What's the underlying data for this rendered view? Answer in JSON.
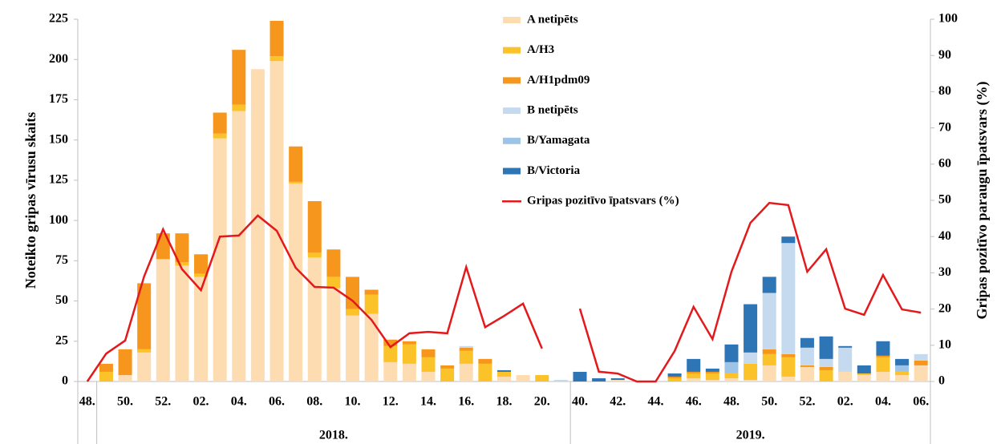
{
  "chart_data": {
    "type": "bar",
    "stacked": true,
    "categories": [
      "48.",
      null,
      "50.",
      null,
      "52.",
      null,
      "02.",
      null,
      "04.",
      null,
      "06.",
      null,
      "08.",
      null,
      "10.",
      null,
      "12.",
      null,
      "14.",
      null,
      "16.",
      null,
      "18.",
      null,
      "20.",
      null,
      "40.",
      null,
      "42.",
      null,
      "44.",
      null,
      "46.",
      null,
      "48.",
      null,
      "50.",
      null,
      "52.",
      null,
      "02.",
      null,
      "04.",
      null,
      "06."
    ],
    "x_group_labels": [
      "2018.",
      "2019."
    ],
    "ylabel": "Noteikto gripas vīrusu skaits",
    "y2label": "Gripas pozitīvo paraugu īpatsvars (%)",
    "ylim": [
      0,
      225
    ],
    "yticks": [
      0,
      25,
      50,
      75,
      100,
      125,
      150,
      175,
      200,
      225
    ],
    "y2lim": [
      0,
      100
    ],
    "y2ticks": [
      0,
      10,
      20,
      30,
      40,
      50,
      60,
      70,
      80,
      90,
      100
    ],
    "grid": false,
    "series": [
      {
        "name": "A netipēts",
        "color": "#fddcb2",
        "values": [
          0,
          0,
          4,
          18,
          76,
          72,
          65,
          151,
          168,
          194,
          199,
          123,
          77,
          58,
          41,
          42,
          12,
          11,
          6,
          0,
          11,
          0,
          3,
          4,
          0,
          0,
          0,
          0,
          1,
          0,
          0,
          0,
          2,
          1,
          2,
          1,
          10,
          3,
          9,
          0,
          6,
          4,
          6,
          4,
          10
        ]
      },
      {
        "name": "A/H3",
        "color": "#fcc22a",
        "values": [
          0,
          6,
          0,
          2,
          0,
          2,
          2,
          3,
          4,
          0,
          3,
          1,
          3,
          7,
          4,
          12,
          10,
          12,
          9,
          8,
          8,
          11,
          3,
          0,
          4,
          0,
          0,
          0,
          0,
          0,
          0,
          2,
          3,
          4,
          3,
          10,
          7,
          12,
          0,
          7,
          0,
          1,
          9,
          2,
          0
        ]
      },
      {
        "name": "A/H1pdm09",
        "color": "#f7961c",
        "values": [
          0,
          5,
          16,
          41,
          16,
          18,
          12,
          13,
          34,
          0,
          22,
          22,
          32,
          17,
          20,
          3,
          4,
          2,
          5,
          2,
          2,
          3,
          0,
          0,
          0,
          0,
          0,
          0,
          0,
          0,
          0,
          1,
          1,
          1,
          0,
          0,
          3,
          2,
          1,
          2,
          0,
          0,
          1,
          0,
          3
        ]
      },
      {
        "name": "B netipēts",
        "color": "#c6daef",
        "values": [
          0,
          0,
          0,
          0,
          0,
          0,
          0,
          0,
          0,
          0,
          0,
          0,
          0,
          0,
          0,
          0,
          0,
          0,
          0,
          0,
          1,
          0,
          0,
          0,
          0,
          1,
          0,
          0,
          0,
          0,
          0,
          0,
          0,
          0,
          0,
          7,
          35,
          69,
          11,
          5,
          15,
          0,
          0,
          0,
          4
        ]
      },
      {
        "name": "B/Yamagata",
        "color": "#9dc3e6",
        "values": [
          0,
          0,
          0,
          0,
          0,
          0,
          0,
          0,
          0,
          0,
          0,
          0,
          0,
          0,
          0,
          0,
          0,
          0,
          0,
          0,
          0,
          0,
          0,
          0,
          0,
          0,
          0,
          0,
          0,
          0,
          0,
          0,
          0,
          0,
          7,
          0,
          0,
          0,
          0,
          0,
          0,
          0,
          0,
          4,
          0
        ]
      },
      {
        "name": "B/Victoria",
        "color": "#2e75b6",
        "values": [
          0,
          0,
          0,
          0,
          0,
          0,
          0,
          0,
          0,
          0,
          0,
          0,
          0,
          0,
          0,
          0,
          0,
          0,
          0,
          0,
          0,
          0,
          1,
          0,
          0,
          0,
          6,
          2,
          1,
          0,
          0,
          2,
          8,
          2,
          11,
          30,
          10,
          4,
          6,
          14,
          1,
          5,
          9,
          4,
          0
        ]
      }
    ],
    "line_series": {
      "name": "Gripas pozitīvo īpatsvars (%)",
      "color": "#e3191c",
      "axis": "y2",
      "values": [
        0,
        7.7,
        11.3,
        29,
        42,
        31,
        25.2,
        40,
        40.3,
        45.8,
        41.6,
        31.4,
        26.1,
        25.9,
        22.3,
        17,
        9.5,
        13.3,
        13.7,
        13.3,
        31.6,
        15,
        18.1,
        21.5,
        9.1,
        null,
        20.1,
        2.7,
        2.2,
        0,
        0,
        8.4,
        20.6,
        11.7,
        30.3,
        43.8,
        49.3,
        48.7,
        30.3,
        36.5,
        20.1,
        18.4,
        29.4,
        19.9,
        19
      ]
    }
  }
}
